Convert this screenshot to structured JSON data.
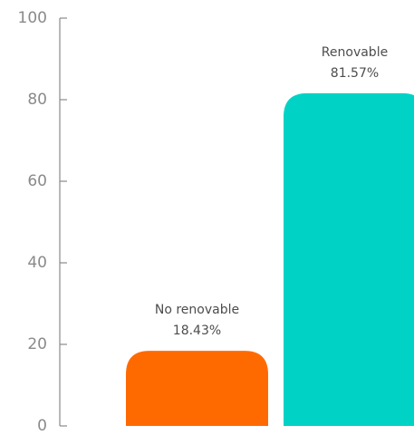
{
  "chart_data": {
    "type": "bar",
    "categories": [
      "No renovable",
      "Renovable"
    ],
    "values": [
      18.43,
      81.57
    ],
    "value_labels": [
      "18.43%",
      "81.57%"
    ],
    "colors": [
      "#ff6a00",
      "#00d3c5"
    ],
    "title": "",
    "xlabel": "",
    "ylabel": "",
    "ylim": [
      0,
      100
    ],
    "yticks": [
      0,
      20,
      40,
      60,
      80,
      100
    ],
    "ytick_labels": [
      "0",
      "20",
      "40",
      "60",
      "80",
      "100"
    ],
    "grid": false,
    "legend": "none",
    "bars_have_rounded_tops": true
  }
}
